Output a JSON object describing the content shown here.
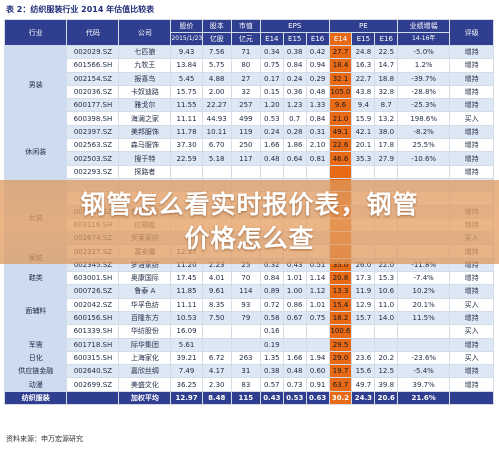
{
  "title": "表 2：纺织服装行业 2014 年估值比较表",
  "headers": {
    "industry": "行业",
    "code": "代码",
    "company": "公司",
    "price_a": "股价",
    "price_b": "2015/1/23",
    "cap_a": "股本",
    "cap_b": "亿股",
    "mv_a": "市值",
    "mv_b": "亿元",
    "eps": "EPS",
    "pe": "PE",
    "e14": "E14",
    "e15": "E15",
    "e16": "E16",
    "growth_a": "业绩增幅",
    "growth_b": "14-16年",
    "rating": "评级"
  },
  "rows": [
    {
      "code": "002029.SZ",
      "company": "七匹狼",
      "price": "9.43",
      "cap": "7.56",
      "mv": "71",
      "eps14": "0.34",
      "eps15": "0.38",
      "eps16": "0.42",
      "pe14": "27.7",
      "pe15": "24.8",
      "pe16": "22.5",
      "growth": "-5.0%",
      "rating": "增持"
    },
    {
      "code": "601566.SH",
      "company": "九牧王",
      "price": "13.84",
      "cap": "5.75",
      "mv": "80",
      "eps14": "0.75",
      "eps15": "0.84",
      "eps16": "0.94",
      "pe14": "18.4",
      "pe15": "16.3",
      "pe16": "14.7",
      "growth": "1.2%",
      "rating": "增持"
    },
    {
      "code": "002154.SZ",
      "company": "报喜鸟",
      "price": "5.45",
      "cap": "4.88",
      "mv": "27",
      "eps14": "0.17",
      "eps15": "0.24",
      "eps16": "0.29",
      "pe14": "32.1",
      "pe15": "22.7",
      "pe16": "18.8",
      "growth": "-39.7%",
      "rating": "增持"
    },
    {
      "code": "002036.SZ",
      "company": "卡奴迪路",
      "price": "15.75",
      "cap": "2.00",
      "mv": "32",
      "eps14": "0.15",
      "eps15": "0.36",
      "eps16": "0.48",
      "pe14": "105.0",
      "pe15": "43.8",
      "pe16": "32.8",
      "growth": "-28.8%",
      "rating": "增持"
    },
    {
      "code": "600177.SH",
      "company": "雅戈尔",
      "price": "11.55",
      "cap": "22.27",
      "mv": "257",
      "eps14": "1.20",
      "eps15": "1.23",
      "eps16": "1.33",
      "pe14": "9.6",
      "pe15": "9.4",
      "pe16": "8.7",
      "growth": "-25.3%",
      "rating": "增持"
    },
    {
      "code": "600398.SH",
      "company": "海澜之家",
      "price": "11.11",
      "cap": "44.93",
      "mv": "499",
      "eps14": "0.53",
      "eps15": "0.7",
      "eps16": "0.84",
      "pe14": "21.0",
      "pe15": "15.9",
      "pe16": "13.2",
      "growth": "198.6%",
      "rating": "买入"
    },
    {
      "code": "002397.SZ",
      "company": "美邦服饰",
      "price": "11.78",
      "cap": "10.11",
      "mv": "119",
      "eps14": "0.24",
      "eps15": "0.28",
      "eps16": "0.31",
      "pe14": "49.1",
      "pe15": "42.1",
      "pe16": "38.0",
      "growth": "-8.2%",
      "rating": "增持"
    },
    {
      "code": "002563.SZ",
      "company": "森马服饰",
      "price": "37.30",
      "cap": "6.70",
      "mv": "250",
      "eps14": "1.66",
      "eps15": "1.86",
      "eps16": "2.10",
      "pe14": "22.6",
      "pe15": "20.1",
      "pe16": "17.8",
      "growth": "25.5%",
      "rating": "增持"
    },
    {
      "code": "002503.SZ",
      "company": "搜于特",
      "price": "22.59",
      "cap": "5.18",
      "mv": "117",
      "eps14": "0.48",
      "eps15": "0.64",
      "eps16": "0.81",
      "pe14": "46.6",
      "pe15": "35.3",
      "pe16": "27.9",
      "growth": "-10.6%",
      "rating": "增持"
    },
    {
      "code": "002293.SZ",
      "company": "探路者",
      "price": "",
      "cap": "",
      "mv": "",
      "eps14": "",
      "eps15": "",
      "eps16": "",
      "pe14": "",
      "pe15": "",
      "pe16": "",
      "growth": "",
      "rating": "增持"
    },
    {
      "code": "",
      "company": "",
      "price": "",
      "cap": "",
      "mv": "",
      "eps14": "",
      "eps15": "",
      "eps16": "",
      "pe14": "",
      "pe15": "",
      "pe16": "",
      "growth": "",
      "rating": ""
    },
    {
      "code": "",
      "company": "",
      "price": "",
      "cap": "",
      "mv": "",
      "eps14": "",
      "eps15": "",
      "eps16": "",
      "pe14": "",
      "pe15": "",
      "pe16": "",
      "growth": "",
      "rating": ""
    },
    {
      "code": "002612.SZ",
      "company": "朗姿股份",
      "price": "",
      "cap": "",
      "mv": "",
      "eps14": "",
      "eps15": "",
      "eps16": "",
      "pe14": "",
      "pe15": "",
      "pe16": "",
      "growth": "",
      "rating": "增持"
    },
    {
      "code": "603116.SH",
      "company": "红蜻蜓",
      "price": "",
      "cap": "",
      "mv": "",
      "eps14": "",
      "eps15": "",
      "eps16": "",
      "pe14": "",
      "pe15": "",
      "pe16": "",
      "growth": "",
      "rating": "增持"
    },
    {
      "code": "002674.SZ",
      "company": "罗莱家纺",
      "price": "",
      "cap": "",
      "mv": "",
      "eps14": "",
      "eps15": "",
      "eps16": "",
      "pe14": "",
      "pe15": "",
      "pe16": "",
      "growth": "",
      "rating": "买入"
    },
    {
      "code": "002327.SZ",
      "company": "富安娜",
      "price": "12.17",
      "cap": "",
      "mv": "",
      "eps14": "",
      "eps15": "",
      "eps16": "",
      "pe14": "",
      "pe15": "",
      "pe16": "",
      "growth": "",
      "rating": "增持"
    },
    {
      "code": "002345.SZ",
      "company": "梦洁家纺",
      "price": "11.20",
      "cap": "2.23",
      "mv": "25",
      "eps14": "0.32",
      "eps15": "0.43",
      "eps16": "0.51",
      "pe14": "35.0",
      "pe15": "26.0",
      "pe16": "22.0",
      "growth": "-11.8%",
      "rating": "增持"
    },
    {
      "code": "603001.SH",
      "company": "奥康国际",
      "price": "17.45",
      "cap": "4.01",
      "mv": "70",
      "eps14": "0.84",
      "eps15": "1.01",
      "eps16": "1.14",
      "pe14": "20.8",
      "pe15": "17.3",
      "pe16": "15.3",
      "growth": "-7.4%",
      "rating": "增持"
    },
    {
      "code": "000726.SZ",
      "company": "鲁泰 A",
      "price": "11.85",
      "cap": "9.61",
      "mv": "114",
      "eps14": "0.89",
      "eps15": "1.00",
      "eps16": "1.12",
      "pe14": "13.3",
      "pe15": "11.9",
      "pe16": "10.6",
      "growth": "10.2%",
      "rating": "增持"
    },
    {
      "code": "002042.SZ",
      "company": "华孚色纺",
      "price": "11.11",
      "cap": "8.35",
      "mv": "93",
      "eps14": "0.72",
      "eps15": "0.86",
      "eps16": "1.01",
      "pe14": "15.4",
      "pe15": "12.9",
      "pe16": "11.0",
      "growth": "20.1%",
      "rating": "买入"
    },
    {
      "code": "600156.SH",
      "company": "百隆东方",
      "price": "10.53",
      "cap": "7.50",
      "mv": "79",
      "eps14": "0.58",
      "eps15": "0.67",
      "eps16": "0.75",
      "pe14": "18.2",
      "pe15": "15.7",
      "pe16": "14.0",
      "growth": "11.5%",
      "rating": "增持"
    },
    {
      "code": "601339.SH",
      "company": "华纺股份",
      "price": "16.09",
      "cap": "",
      "mv": "",
      "eps14": "0.16",
      "eps15": "",
      "eps16": "",
      "pe14": "100.6",
      "pe15": "",
      "pe16": "",
      "growth": "",
      "rating": "买入"
    },
    {
      "code": "601718.SH",
      "company": "际华集团",
      "price": "5.61",
      "cap": "",
      "mv": "",
      "eps14": "0.19",
      "eps15": "",
      "eps16": "",
      "pe14": "29.5",
      "pe15": "",
      "pe16": "",
      "growth": "",
      "rating": "增持"
    },
    {
      "code": "600315.SH",
      "company": "上海家化",
      "price": "39.21",
      "cap": "6.72",
      "mv": "263",
      "eps14": "1.35",
      "eps15": "1.66",
      "eps16": "1.94",
      "pe14": "29.0",
      "pe15": "23.6",
      "pe16": "20.2",
      "growth": "-23.6%",
      "rating": "买入"
    },
    {
      "code": "002640.SZ",
      "company": "嘉欣丝绸",
      "price": "7.49",
      "cap": "4.17",
      "mv": "31",
      "eps14": "0.38",
      "eps15": "0.48",
      "eps16": "0.60",
      "pe14": "19.7",
      "pe15": "15.6",
      "pe16": "12.5",
      "growth": "-5.4%",
      "rating": "增持"
    },
    {
      "code": "002699.SZ",
      "company": "美盛文化",
      "price": "36.25",
      "cap": "2.30",
      "mv": "83",
      "eps14": "0.57",
      "eps15": "0.73",
      "eps16": "0.91",
      "pe14": "63.7",
      "pe15": "49.7",
      "pe16": "39.8",
      "growth": "39.7%",
      "rating": "增持"
    }
  ],
  "industries": [
    {
      "label": "男装",
      "rows": 6
    },
    {
      "label": "休闲装",
      "rows": 4
    },
    {
      "label": "",
      "rows": 2
    },
    {
      "label": "女装",
      "rows": 2
    },
    {
      "label": "",
      "rows": 1
    },
    {
      "label": "家纺",
      "rows": 2
    },
    {
      "label": "鞋类",
      "rows": 1
    },
    {
      "label": "面辅料",
      "rows": 4
    },
    {
      "label": "军需",
      "rows": 1
    },
    {
      "label": "日化",
      "rows": 1
    },
    {
      "label": "供应链金融",
      "rows": 1
    },
    {
      "label": "动漫",
      "rows": 1
    }
  ],
  "average": {
    "industry": "纺织服装",
    "code": "",
    "company": "加权平均",
    "price": "12.97",
    "cap": "8.48",
    "mv": "115",
    "eps14": "0.43",
    "eps15": "0.53",
    "eps16": "0.63",
    "pe14": "30.2",
    "pe15": "24.3",
    "pe16": "20.6",
    "growth": "21.6%",
    "rating": ""
  },
  "source": "资料来源：申万宏源研究",
  "banner": {
    "line1": "钢管怎么看实时报价表，钢管",
    "line2": "价格怎么查"
  },
  "colors": {
    "header": "#2f3e8f",
    "e14_highlight": "#e96a16",
    "odd_row": "#dde8f5"
  }
}
